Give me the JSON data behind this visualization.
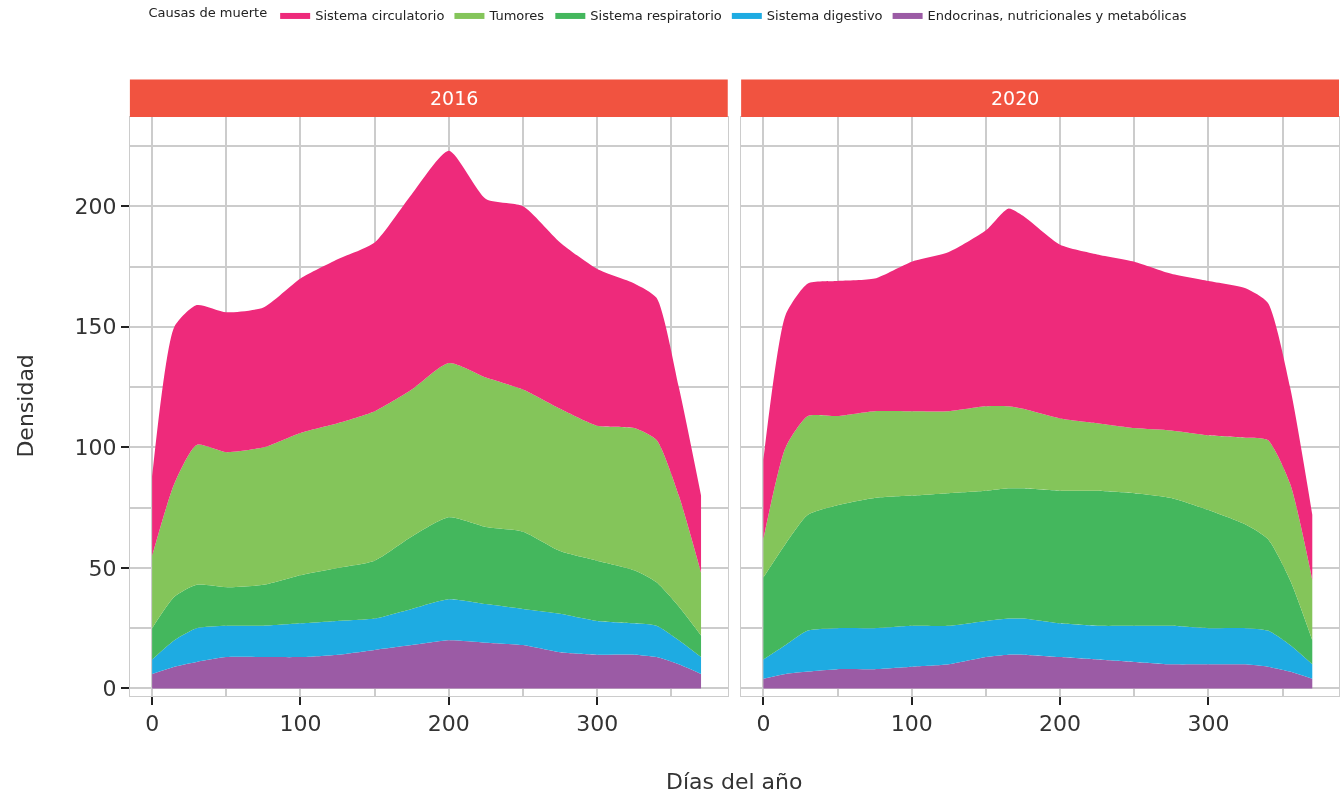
{
  "chart_data": [
    {
      "type": "area",
      "title": "2016",
      "xlabel": "Días del año",
      "ylabel": "Densidad",
      "legend_title": "Causas de muerte",
      "legend": "top",
      "stacked": true,
      "grid": true,
      "x": [
        0,
        15,
        30,
        50,
        75,
        100,
        125,
        150,
        175,
        200,
        225,
        250,
        275,
        300,
        325,
        340,
        355,
        370
      ],
      "xlim": [
        -15,
        388
      ],
      "xticks": [
        0,
        100,
        200,
        300
      ],
      "ylim": [
        -3,
        237
      ],
      "yticks": [
        0,
        50,
        100,
        150,
        200
      ],
      "series": [
        {
          "name": "Endocrinas, nutricionales y metabólicas",
          "color": "#9b5ba5",
          "values": [
            6,
            9,
            11,
            13,
            13,
            13,
            14,
            16,
            18,
            20,
            19,
            18,
            15,
            14,
            14,
            13,
            10,
            6
          ]
        },
        {
          "name": "Sistema digestivo",
          "color": "#1eabe2",
          "values": [
            6,
            11,
            14,
            13,
            13,
            14,
            14,
            13,
            15,
            17,
            16,
            15,
            16,
            14,
            13,
            13,
            10,
            7
          ]
        },
        {
          "name": "Sistema respiratorio",
          "color": "#44b75d",
          "values": [
            13,
            18,
            18,
            16,
            17,
            20,
            22,
            24,
            30,
            34,
            32,
            32,
            26,
            25,
            22,
            18,
            14,
            9
          ]
        },
        {
          "name": "Tumores",
          "color": "#84c55a",
          "values": [
            30,
            47,
            58,
            56,
            57,
            59,
            60,
            62,
            61,
            64,
            62,
            59,
            59,
            56,
            59,
            59,
            46,
            26
          ]
        },
        {
          "name": "Sistema circulatorio",
          "color": "#ee2a7b",
          "values": [
            33,
            65,
            58,
            58,
            58,
            64,
            68,
            70,
            81,
            88,
            74,
            76,
            69,
            65,
            60,
            59,
            45,
            32
          ]
        }
      ]
    },
    {
      "type": "area",
      "title": "2020",
      "stacked": true,
      "grid": true,
      "tick_labels": "x",
      "x": [
        0,
        15,
        30,
        50,
        75,
        100,
        125,
        150,
        165,
        175,
        200,
        225,
        250,
        275,
        300,
        325,
        340,
        355,
        370
      ],
      "xlim": [
        -15,
        388
      ],
      "xticks": [
        0,
        100,
        200,
        300
      ],
      "ylim": [
        -3,
        237
      ],
      "yticks": [
        0,
        50,
        100,
        150,
        200
      ],
      "series": [
        {
          "color": "#9b5ba5",
          "values": [
            4,
            6,
            7,
            8,
            8,
            9,
            10,
            13,
            14,
            14,
            13,
            12,
            11,
            10,
            10,
            10,
            9,
            7,
            4
          ]
        },
        {
          "color": "#1eabe2",
          "values": [
            8,
            12,
            17,
            17,
            17,
            17,
            16,
            15,
            15,
            15,
            14,
            14,
            15,
            16,
            15,
            15,
            15,
            11,
            6
          ]
        },
        {
          "color": "#44b75d",
          "values": [
            34,
            42,
            48,
            51,
            54,
            54,
            55,
            54,
            54,
            54,
            55,
            56,
            55,
            53,
            49,
            43,
            38,
            27,
            10
          ]
        },
        {
          "color": "#84c55a",
          "values": [
            16,
            40,
            41,
            37,
            36,
            35,
            34,
            35,
            34,
            33,
            30,
            28,
            27,
            28,
            31,
            36,
            41,
            40,
            25
          ]
        },
        {
          "color": "#ee2a7b",
          "values": [
            33,
            55,
            55,
            56,
            55,
            62,
            66,
            73,
            82,
            80,
            72,
            70,
            69,
            65,
            64,
            62,
            57,
            40,
            27
          ]
        }
      ]
    }
  ]
}
